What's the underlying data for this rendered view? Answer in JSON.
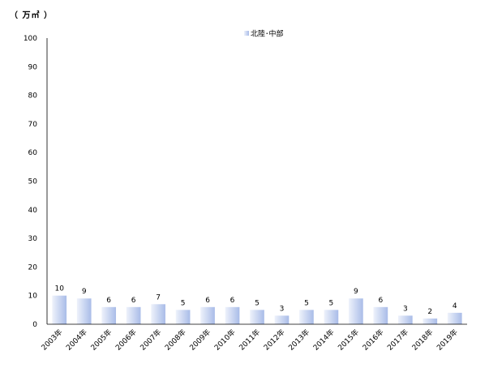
{
  "chart_data": {
    "type": "bar",
    "unit_label": "（ 万㎡ ）",
    "categories": [
      "2003年",
      "2004年",
      "2005年",
      "2006年",
      "2007年",
      "2008年",
      "2009年",
      "2010年",
      "2011年",
      "2012年",
      "2013年",
      "2014年",
      "2015年",
      "2016年",
      "2017年",
      "2018年",
      "2019年"
    ],
    "series": [
      {
        "name": "北陸･中部",
        "values": [
          10,
          9,
          6,
          6,
          7,
          5,
          6,
          6,
          5,
          3,
          5,
          5,
          9,
          6,
          3,
          2,
          4
        ]
      }
    ],
    "ylim": [
      0,
      100
    ],
    "yticks": [
      0,
      10,
      20,
      30,
      40,
      50,
      60,
      70,
      80,
      90,
      100
    ],
    "grid": false,
    "legend_position": "top-center",
    "colors": {
      "bar_light": "#eef2fb",
      "bar_dark": "#a9bce8",
      "axis": "#000000"
    }
  }
}
